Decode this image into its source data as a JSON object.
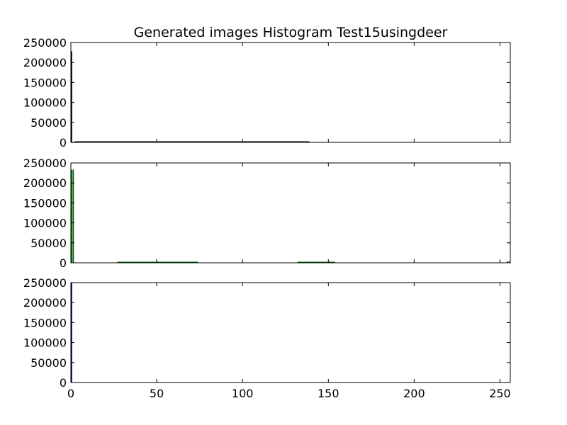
{
  "chart_data": {
    "type": "bar",
    "title": "Generated images Histogram Test15usingdeer",
    "xlabel": "",
    "ylabel": "",
    "xlim": [
      0,
      256
    ],
    "ylim": [
      0,
      250000
    ],
    "xticks": [
      0,
      50,
      100,
      150,
      200,
      250
    ],
    "xtick_labels": [
      "0",
      "50",
      "100",
      "150",
      "200",
      "250"
    ],
    "yticks": [
      0,
      50000,
      100000,
      150000,
      200000,
      250000
    ],
    "ytick_labels": [
      "0",
      "50000",
      "100000",
      "150000",
      "200000",
      "250000"
    ],
    "grid": false,
    "legend": "none",
    "panels": [
      {
        "color": "#000000",
        "bars": [
          {
            "x": 0,
            "value": 228000
          },
          {
            "x": 1,
            "value": 300
          }
        ],
        "runs": [
          {
            "x_start": 2,
            "x_end": 139,
            "value": 300
          }
        ]
      },
      {
        "color": "#006400",
        "bars": [
          {
            "x": 0,
            "value": 233000
          },
          {
            "x": 1,
            "value": 233000
          },
          {
            "x": 254,
            "value": 3500
          },
          {
            "x": 255,
            "value": 3500
          }
        ],
        "runs": [
          {
            "x_start": 27,
            "x_end": 74,
            "value": 1200
          },
          {
            "x_start": 132,
            "x_end": 154,
            "value": 1200
          }
        ]
      },
      {
        "color": "#000080",
        "bars": [
          {
            "x": 0,
            "value": 250000
          }
        ],
        "runs": []
      }
    ]
  }
}
